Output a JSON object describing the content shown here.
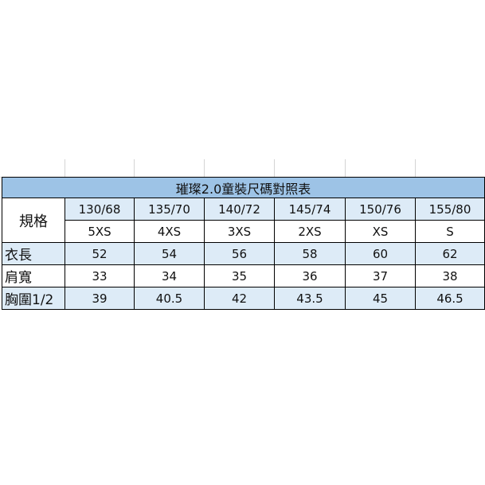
{
  "title": "璀璨2.0童裝尺碼對照表",
  "spec_label": "規格",
  "sizes_cm": [
    "130/68",
    "135/70",
    "140/72",
    "145/74",
    "150/76",
    "155/80"
  ],
  "sizes_label": [
    "5XS",
    "4XS",
    "3XS",
    "2XS",
    "XS",
    "S"
  ],
  "rows": [
    {
      "label": "衣長",
      "values": [
        "52",
        "54",
        "56",
        "58",
        "60",
        "62"
      ]
    },
    {
      "label": "肩寬",
      "values": [
        "33",
        "34",
        "35",
        "36",
        "37",
        "38"
      ]
    },
    {
      "label": "胸圍1/2",
      "values": [
        "39",
        "40.5",
        "42",
        "43.5",
        "45",
        "46.5"
      ]
    }
  ],
  "colors": {
    "title_bg": "#9dc3e6",
    "row_blue": "#ddebf7"
  }
}
